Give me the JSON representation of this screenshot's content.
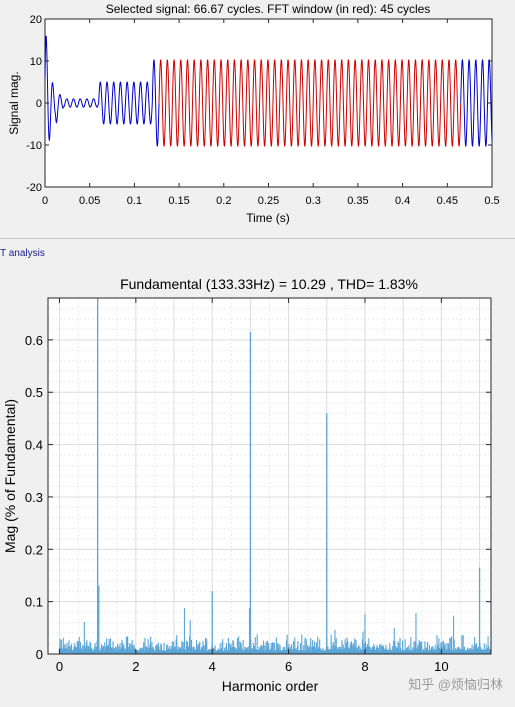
{
  "signal_plot": {
    "title": "Selected signal: 66.67 cycles. FFT window (in red): 45 cycles",
    "xlabel": "Time (s)",
    "ylabel": "Signal mag.",
    "xticks": [
      "0",
      "0.05",
      "0.1",
      "0.15",
      "0.2",
      "0.25",
      "0.3",
      "0.35",
      "0.4",
      "0.45",
      "0.5"
    ],
    "yticks": [
      "-20",
      "-10",
      "0",
      "10",
      "20"
    ],
    "colors": {
      "signal": "#0000c8",
      "fft_window": "#d00000"
    }
  },
  "panel": {
    "label": "T analysis"
  },
  "fft_plot": {
    "title": "Fundamental (133.33Hz) = 10.29 , THD= 1.83%",
    "xlabel": "Harmonic order",
    "ylabel": "Mag (% of Fundamental)",
    "xticks": [
      "0",
      "2",
      "4",
      "6",
      "8",
      "10"
    ],
    "yticks": [
      "0",
      "0.1",
      "0.2",
      "0.3",
      "0.4",
      "0.5",
      "0.6"
    ],
    "bar_color": "#5aa5d6"
  },
  "chart_data": [
    {
      "type": "line",
      "title": "Selected signal: 66.67 cycles. FFT window (in red): 45 cycles",
      "xlabel": "Time (s)",
      "ylabel": "Signal mag.",
      "xlim": [
        0,
        0.5
      ],
      "ylim": [
        -20,
        20
      ],
      "grid": false,
      "fundamental_hz": 133.33,
      "segments": [
        {
          "t_start": 0,
          "t_end": 0.012,
          "description": "initial transient",
          "peak": 20,
          "trough": -20
        },
        {
          "t_start": 0.012,
          "t_end": 0.06,
          "amplitude": 1
        },
        {
          "t_start": 0.06,
          "t_end": 0.12,
          "amplitude": 5
        },
        {
          "t_start": 0.12,
          "t_end": 0.5,
          "amplitude": 10.29
        }
      ],
      "fft_window": {
        "t_start": 0.1275,
        "t_end": 0.465,
        "cycles": 45
      }
    },
    {
      "type": "bar",
      "title": "Fundamental (133.33Hz) = 10.29 , THD= 1.83%",
      "xlabel": "Harmonic order",
      "ylabel": "Mag (% of Fundamental)",
      "xlim": [
        -0.3,
        11.3
      ],
      "ylim": [
        0,
        0.68
      ],
      "grid": true,
      "fundamental": 10.29,
      "thd_percent": 1.83,
      "peaks": [
        {
          "x": 1,
          "y": 0.68
        },
        {
          "x": 5,
          "y": 0.615
        },
        {
          "x": 7,
          "y": 0.46
        },
        {
          "x": 11,
          "y": 0.165
        },
        {
          "x": 4,
          "y": 0.12
        },
        {
          "x": 1.03,
          "y": 0.13
        }
      ],
      "noise_floor": {
        "x_start": 0,
        "x_end": 11.3,
        "typical": 0.02,
        "max": 0.09
      }
    }
  ]
}
